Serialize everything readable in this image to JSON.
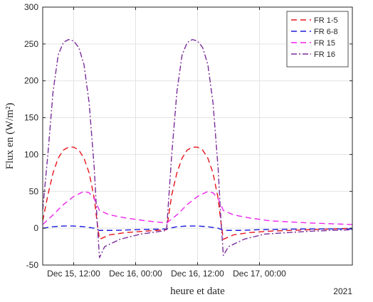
{
  "chart_data": {
    "type": "line",
    "title": "",
    "xlabel": "heure et date",
    "ylabel": "Flux en (W/m²)",
    "x_secondary_label": "2021",
    "xlim": [
      "2021-12-15 06:00",
      "2021-12-17 18:00"
    ],
    "ylim": [
      -50,
      300
    ],
    "y_ticks": [
      -50,
      0,
      50,
      100,
      150,
      200,
      250,
      300
    ],
    "x_ticks": [
      {
        "t": "2021-12-15 12:00",
        "label": "Dec 15, 12:00"
      },
      {
        "t": "2021-12-16 00:00",
        "label": "Dec 16, 00:00"
      },
      {
        "t": "2021-12-16 12:00",
        "label": "Dec 16, 12:00"
      },
      {
        "t": "2021-12-17 00:00",
        "label": "Dec 17, 00:00"
      }
    ],
    "grid": true,
    "legend_position": "top-right",
    "series": [
      {
        "name": "FR 1-5",
        "color": "#e8131a",
        "dash": "dashed",
        "points": [
          [
            "2021-12-15 06:00",
            10
          ],
          [
            "2021-12-15 07:00",
            45
          ],
          [
            "2021-12-15 08:00",
            75
          ],
          [
            "2021-12-15 09:00",
            95
          ],
          [
            "2021-12-15 10:00",
            106
          ],
          [
            "2021-12-15 11:00",
            110
          ],
          [
            "2021-12-15 12:00",
            110
          ],
          [
            "2021-12-15 13:00",
            106
          ],
          [
            "2021-12-15 14:00",
            95
          ],
          [
            "2021-12-15 15:00",
            75
          ],
          [
            "2021-12-15 16:00",
            40
          ],
          [
            "2021-12-15 16:30",
            10
          ],
          [
            "2021-12-15 17:00",
            -15
          ],
          [
            "2021-12-15 19:00",
            -9
          ],
          [
            "2021-12-15 22:00",
            -6
          ],
          [
            "2021-12-16 02:00",
            -4
          ],
          [
            "2021-12-16 06:00",
            -2
          ],
          [
            "2021-12-16 07:00",
            45
          ],
          [
            "2021-12-16 08:00",
            75
          ],
          [
            "2021-12-16 09:00",
            95
          ],
          [
            "2021-12-16 10:00",
            106
          ],
          [
            "2021-12-16 11:00",
            110
          ],
          [
            "2021-12-16 12:00",
            110
          ],
          [
            "2021-12-16 13:00",
            106
          ],
          [
            "2021-12-16 14:00",
            95
          ],
          [
            "2021-12-16 15:00",
            75
          ],
          [
            "2021-12-16 16:00",
            40
          ],
          [
            "2021-12-16 16:30",
            10
          ],
          [
            "2021-12-16 17:00",
            -15
          ],
          [
            "2021-12-16 19:00",
            -9
          ],
          [
            "2021-12-16 22:00",
            -6
          ],
          [
            "2021-12-17 02:00",
            -4
          ],
          [
            "2021-12-17 10:00",
            -2
          ],
          [
            "2021-12-17 18:00",
            0
          ]
        ]
      },
      {
        "name": "FR 6-8",
        "color": "#1b1bdc",
        "dash": "dashed",
        "points": [
          [
            "2021-12-15 06:00",
            0
          ],
          [
            "2021-12-15 08:00",
            2
          ],
          [
            "2021-12-15 10:00",
            3
          ],
          [
            "2021-12-15 12:00",
            3
          ],
          [
            "2021-12-15 14:00",
            2
          ],
          [
            "2021-12-15 16:00",
            0
          ],
          [
            "2021-12-15 17:00",
            -3
          ],
          [
            "2021-12-15 20:00",
            -3
          ],
          [
            "2021-12-16 00:00",
            -2
          ],
          [
            "2021-12-16 06:00",
            -1
          ],
          [
            "2021-12-16 08:00",
            2
          ],
          [
            "2021-12-16 10:00",
            3
          ],
          [
            "2021-12-16 12:00",
            3
          ],
          [
            "2021-12-16 14:00",
            2
          ],
          [
            "2021-12-16 16:00",
            0
          ],
          [
            "2021-12-16 17:00",
            -3
          ],
          [
            "2021-12-16 20:00",
            -3
          ],
          [
            "2021-12-17 00:00",
            -2
          ],
          [
            "2021-12-17 08:00",
            -1
          ],
          [
            "2021-12-17 18:00",
            -1
          ]
        ]
      },
      {
        "name": "FR 15",
        "color": "#ee22ee",
        "dash": "dashed",
        "points": [
          [
            "2021-12-15 06:00",
            5
          ],
          [
            "2021-12-15 08:00",
            18
          ],
          [
            "2021-12-15 10:00",
            32
          ],
          [
            "2021-12-15 12:00",
            43
          ],
          [
            "2021-12-15 14:00",
            50
          ],
          [
            "2021-12-15 15:00",
            48
          ],
          [
            "2021-12-15 16:00",
            40
          ],
          [
            "2021-12-15 17:00",
            24
          ],
          [
            "2021-12-15 19:00",
            18
          ],
          [
            "2021-12-15 22:00",
            14
          ],
          [
            "2021-12-16 02:00",
            10
          ],
          [
            "2021-12-16 06:00",
            7
          ],
          [
            "2021-12-16 08:00",
            18
          ],
          [
            "2021-12-16 10:00",
            32
          ],
          [
            "2021-12-16 12:00",
            43
          ],
          [
            "2021-12-16 14:00",
            50
          ],
          [
            "2021-12-16 15:00",
            48
          ],
          [
            "2021-12-16 16:00",
            40
          ],
          [
            "2021-12-16 17:00",
            24
          ],
          [
            "2021-12-16 19:00",
            18
          ],
          [
            "2021-12-16 22:00",
            14
          ],
          [
            "2021-12-17 02:00",
            10
          ],
          [
            "2021-12-17 10:00",
            7
          ],
          [
            "2021-12-17 18:00",
            5
          ]
        ]
      },
      {
        "name": "FR 16",
        "color": "#7a2b9a",
        "dash": "dashdot",
        "points": [
          [
            "2021-12-15 06:00",
            25
          ],
          [
            "2021-12-15 07:00",
            100
          ],
          [
            "2021-12-15 08:00",
            185
          ],
          [
            "2021-12-15 09:00",
            235
          ],
          [
            "2021-12-15 10:00",
            252
          ],
          [
            "2021-12-15 11:00",
            256
          ],
          [
            "2021-12-15 12:00",
            254
          ],
          [
            "2021-12-15 13:00",
            245
          ],
          [
            "2021-12-15 14:00",
            222
          ],
          [
            "2021-12-15 15:00",
            170
          ],
          [
            "2021-12-15 16:00",
            80
          ],
          [
            "2021-12-15 16:30",
            15
          ],
          [
            "2021-12-15 17:00",
            -40
          ],
          [
            "2021-12-15 18:00",
            -25
          ],
          [
            "2021-12-15 21:00",
            -15
          ],
          [
            "2021-12-16 01:00",
            -8
          ],
          [
            "2021-12-16 06:00",
            -3
          ],
          [
            "2021-12-16 07:00",
            100
          ],
          [
            "2021-12-16 08:00",
            185
          ],
          [
            "2021-12-16 09:00",
            235
          ],
          [
            "2021-12-16 10:00",
            252
          ],
          [
            "2021-12-16 11:00",
            256
          ],
          [
            "2021-12-16 12:00",
            254
          ],
          [
            "2021-12-16 13:00",
            245
          ],
          [
            "2021-12-16 14:00",
            222
          ],
          [
            "2021-12-16 15:00",
            170
          ],
          [
            "2021-12-16 16:00",
            80
          ],
          [
            "2021-12-16 16:30",
            15
          ],
          [
            "2021-12-16 17:00",
            -37
          ],
          [
            "2021-12-16 18:00",
            -25
          ],
          [
            "2021-12-16 21:00",
            -15
          ],
          [
            "2021-12-17 01:00",
            -8
          ],
          [
            "2021-12-17 10:00",
            -4
          ],
          [
            "2021-12-17 18:00",
            -2
          ]
        ]
      }
    ]
  }
}
